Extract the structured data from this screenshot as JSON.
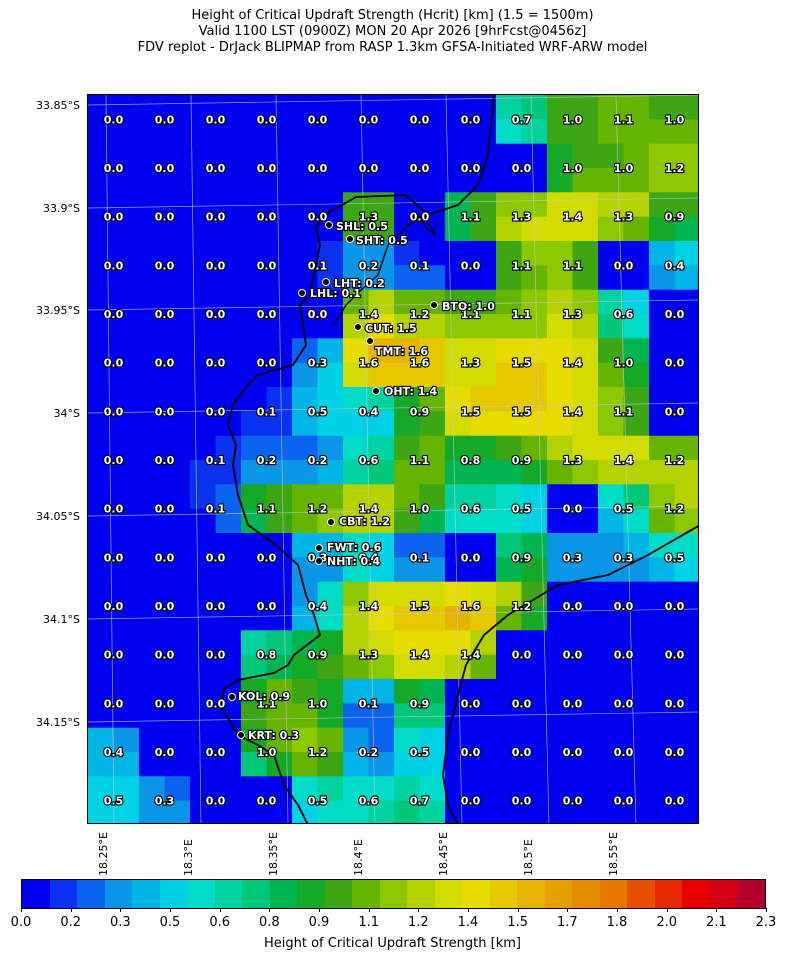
{
  "title": {
    "line1": "Height of Critical Updraft Strength (Hcrit) [km] (1.5 = 1500m)",
    "line2": "Valid 1100 LST (0900Z) MON 20 Apr 2026 [9hrFcst@0456z]",
    "line3": "FDV replot - DrJack BLIPMAP from RASP 1.3km GFSA-Initiated WRF-ARW model"
  },
  "lat_labels": [
    "33.85°S",
    "33.9°S",
    "33.95°S",
    "34°S",
    "34.05°S",
    "34.1°S",
    "34.15°S"
  ],
  "lon_labels": [
    "18.25°E",
    "18.3°E",
    "18.35°E",
    "18.4°E",
    "18.45°E",
    "18.5°E",
    "18.55°E"
  ],
  "colorbar": {
    "label": "Height of Critical Updraft Strength [km]",
    "ticks": [
      "0.0",
      "0.2",
      "0.3",
      "0.5",
      "0.6",
      "0.8",
      "0.9",
      "1.1",
      "1.2",
      "1.4",
      "1.5",
      "1.7",
      "1.8",
      "2.0",
      "2.1",
      "2.3"
    ],
    "range": [
      0.0,
      2.3
    ],
    "colors": [
      "#0000f0",
      "#0a32f0",
      "#0a64f0",
      "#0a96e6",
      "#00b4e6",
      "#00d2e6",
      "#00dcc8",
      "#00d2a0",
      "#00c878",
      "#00b450",
      "#14aa28",
      "#3ca614",
      "#64b400",
      "#8cc800",
      "#b4d200",
      "#d2dc00",
      "#e6dc00",
      "#e6c800",
      "#e6b400",
      "#e6a000",
      "#e68c00",
      "#e67800",
      "#e65000",
      "#e62800",
      "#e60000",
      "#d20014",
      "#b40028"
    ]
  },
  "grid_values": [
    [
      "0.0",
      "0.0",
      "0.0",
      "0.0",
      "0.0",
      "0.0",
      "0.0",
      "0.0",
      "0.7",
      "1.0",
      "1.1",
      "1.0"
    ],
    [
      "0.0",
      "0.0",
      "0.0",
      "0.0",
      "0.0",
      "0.0",
      "0.0",
      "0.0",
      "0.0",
      "1.0",
      "1.0",
      "1.2"
    ],
    [
      "0.0",
      "0.0",
      "0.0",
      "0.0",
      "0.0",
      "1.3",
      "0.0",
      "1.1",
      "1.3",
      "1.4",
      "1.3",
      "0.9"
    ],
    [
      "0.0",
      "0.0",
      "0.0",
      "0.0",
      "0.1",
      "0.2",
      "0.1",
      "0.0",
      "1.1",
      "1.1",
      "0.0",
      "0.4"
    ],
    [
      "0.0",
      "0.0",
      "0.0",
      "0.0",
      "0.0",
      "1.4",
      "1.2",
      "1.1",
      "1.1",
      "1.3",
      "0.6",
      "0.0"
    ],
    [
      "0.0",
      "0.0",
      "0.0",
      "0.0",
      "0.3",
      "1.6",
      "1.6",
      "1.3",
      "1.5",
      "1.4",
      "1.0",
      "0.0"
    ],
    [
      "0.0",
      "0.0",
      "0.0",
      "0.1",
      "0.5",
      "0.4",
      "0.9",
      "1.5",
      "1.5",
      "1.4",
      "1.1",
      "0.0"
    ],
    [
      "0.0",
      "0.0",
      "0.1",
      "0.2",
      "0.2",
      "0.6",
      "1.1",
      "0.8",
      "0.9",
      "1.3",
      "1.4",
      "1.2"
    ],
    [
      "0.0",
      "0.0",
      "0.1",
      "1.1",
      "1.2",
      "1.4",
      "1.0",
      "0.6",
      "0.5",
      "0.0",
      "0.5",
      "1.2"
    ],
    [
      "0.0",
      "0.0",
      "0.0",
      "0.0",
      "0.3",
      "0.4",
      "0.1",
      "0.0",
      "0.9",
      "0.3",
      "0.3",
      "0.5"
    ],
    [
      "0.0",
      "0.0",
      "0.0",
      "0.0",
      "0.4",
      "1.4",
      "1.5",
      "1.6",
      "1.2",
      "0.0",
      "0.0",
      "0.0"
    ],
    [
      "0.0",
      "0.0",
      "0.0",
      "0.8",
      "0.9",
      "1.3",
      "1.4",
      "1.4",
      "0.0",
      "0.0",
      "0.0",
      "0.0"
    ],
    [
      "0.0",
      "0.0",
      "0.0",
      "1.1",
      "1.0",
      "0.1",
      "0.9",
      "0.0",
      "0.0",
      "0.0",
      "0.0",
      "0.0"
    ],
    [
      "0.4",
      "0.0",
      "0.0",
      "1.0",
      "1.2",
      "0.2",
      "0.5",
      "0.0",
      "0.0",
      "0.0",
      "0.0",
      "0.0"
    ],
    [
      "0.5",
      "0.3",
      "0.0",
      "0.0",
      "0.5",
      "0.6",
      "0.7",
      "0.0",
      "0.0",
      "0.0",
      "0.0",
      "0.0"
    ]
  ],
  "sites": [
    {
      "label": "SHL: 0.5",
      "value": 0.5
    },
    {
      "label": "SHT: 0.5",
      "value": 0.5
    },
    {
      "label": "LHT: 0.2",
      "value": 0.2
    },
    {
      "label": "LHL: 0.1",
      "value": 0.1
    },
    {
      "label": "BTO: 1.0",
      "value": 1.0
    },
    {
      "label": "CUT: 1.5",
      "value": 1.5
    },
    {
      "label": "TMT: 1.6",
      "value": 1.6
    },
    {
      "label": "OHT: 1.4",
      "value": 1.4
    },
    {
      "label": "CBT: 1.2",
      "value": 1.2
    },
    {
      "label": "FWT: 0.6",
      "value": 0.6
    },
    {
      "label": "NHT: 0.4",
      "value": 0.4
    },
    {
      "label": "KOL: 0.9",
      "value": 0.9
    },
    {
      "label": "KRT: 0.3",
      "value": 0.3
    }
  ]
}
